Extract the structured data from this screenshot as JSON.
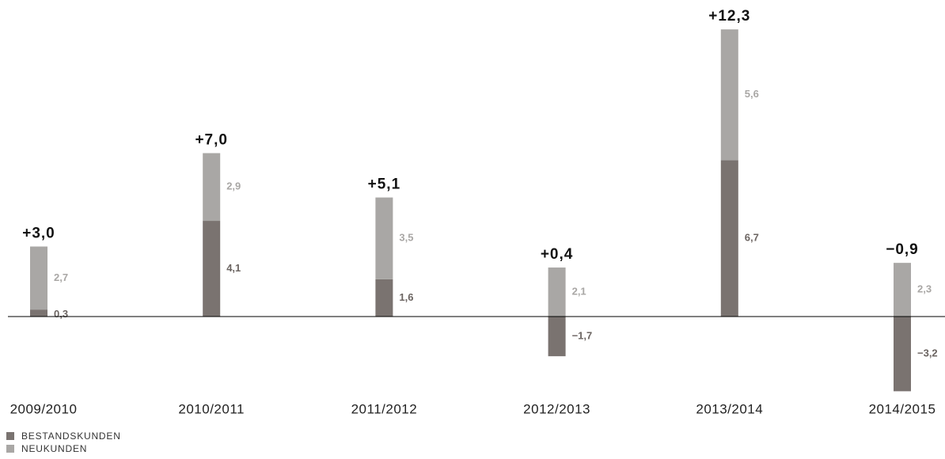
{
  "chart_data": {
    "type": "bar",
    "stacked": true,
    "categories": [
      "2009/2010",
      "2010/2011",
      "2011/2012",
      "2012/2013",
      "2013/2014",
      "2014/2015"
    ],
    "series": [
      {
        "name": "BESTANDSKUNDEN",
        "color": "#7a7370",
        "label_color": "#6b6461",
        "values": [
          0.3,
          4.1,
          1.6,
          -1.7,
          6.7,
          -3.2
        ],
        "value_labels": [
          "0,3",
          "4,1",
          "1,6",
          "−1,7",
          "6,7",
          "−3,2"
        ]
      },
      {
        "name": "NEUKUNDEN",
        "color": "#a9a7a5",
        "label_color": "#a9a7a5",
        "values": [
          2.7,
          2.9,
          3.5,
          2.1,
          5.6,
          2.3
        ],
        "value_labels": [
          "2,7",
          "2,9",
          "3,5",
          "2,1",
          "5,6",
          "2,3"
        ]
      }
    ],
    "totals": [
      3.0,
      7.0,
      5.1,
      0.4,
      12.3,
      -0.9
    ],
    "total_labels": [
      "+3,0",
      "+7,0",
      "+5,1",
      "+0,4",
      "+12,3",
      "−0,9"
    ],
    "ylim": [
      -4,
      13
    ]
  }
}
